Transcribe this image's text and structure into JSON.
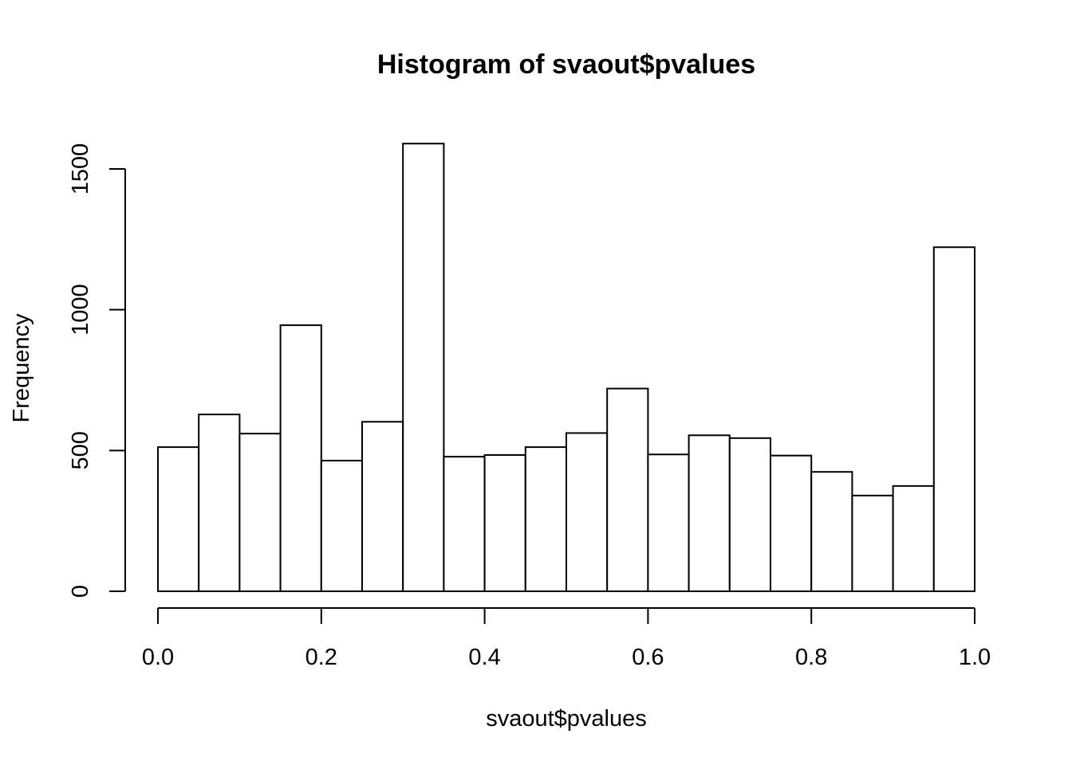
{
  "chart_data": {
    "type": "bar",
    "title": "Histogram of svaout$pvalues",
    "xlabel": "svaout$pvalues",
    "ylabel": "Frequency",
    "bin_edges": [
      0.0,
      0.05,
      0.1,
      0.15,
      0.2,
      0.25,
      0.3,
      0.35,
      0.4,
      0.45,
      0.5,
      0.55,
      0.6,
      0.65,
      0.7,
      0.75,
      0.8,
      0.85,
      0.9,
      0.95,
      1.0
    ],
    "values": [
      512,
      628,
      560,
      945,
      464,
      602,
      1590,
      478,
      484,
      512,
      562,
      720,
      486,
      554,
      544,
      482,
      424,
      340,
      374,
      1222
    ],
    "xlim": [
      0,
      1
    ],
    "ylim": [
      0,
      1590
    ],
    "x_ticks": [
      0.0,
      0.2,
      0.4,
      0.6,
      0.8,
      1.0
    ],
    "x_tick_labels": [
      "0.0",
      "0.2",
      "0.4",
      "0.6",
      "0.8",
      "1.0"
    ],
    "y_ticks": [
      0,
      500,
      1000,
      1500
    ],
    "y_tick_labels": [
      "0",
      "500",
      "1000",
      "1500"
    ],
    "grid": false,
    "bar_fill": "#ffffff",
    "bar_stroke": "#000000"
  }
}
